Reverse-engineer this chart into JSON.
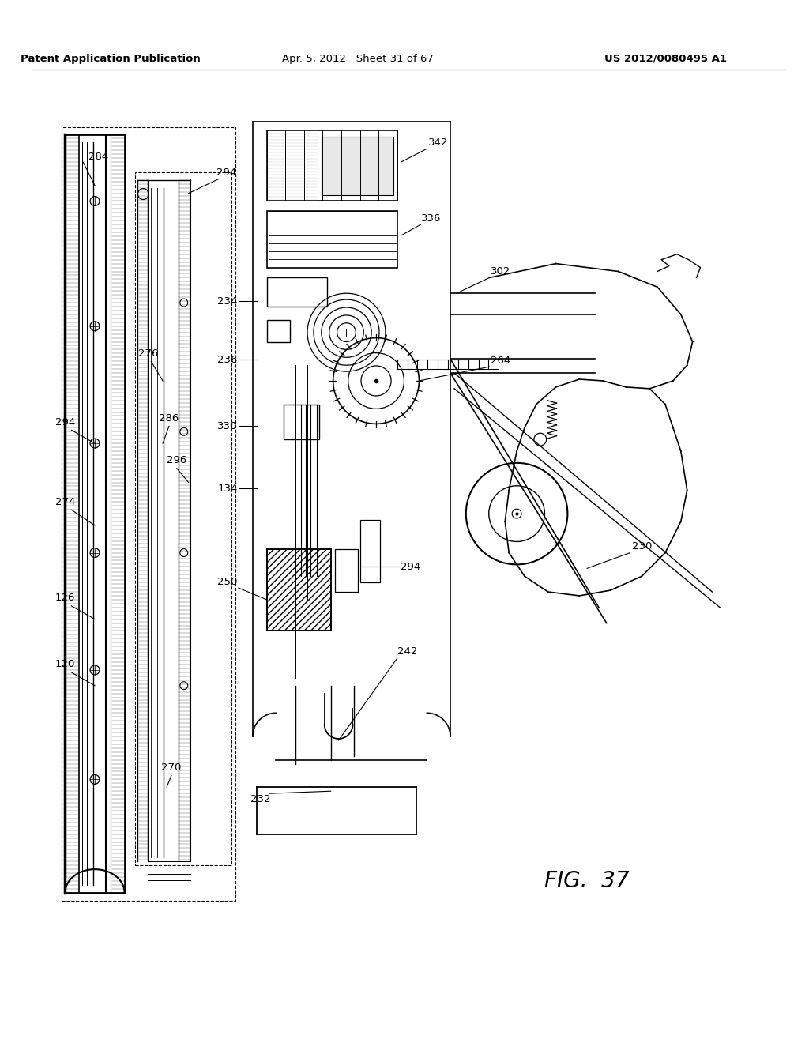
{
  "background_color": "#ffffff",
  "line_color": "#000000",
  "header_left": "Patent Application Publication",
  "header_center": "Apr. 5, 2012   Sheet 31 of 67",
  "header_right": "US 2012/0080495 A1",
  "fig_label": "FIG.  37"
}
